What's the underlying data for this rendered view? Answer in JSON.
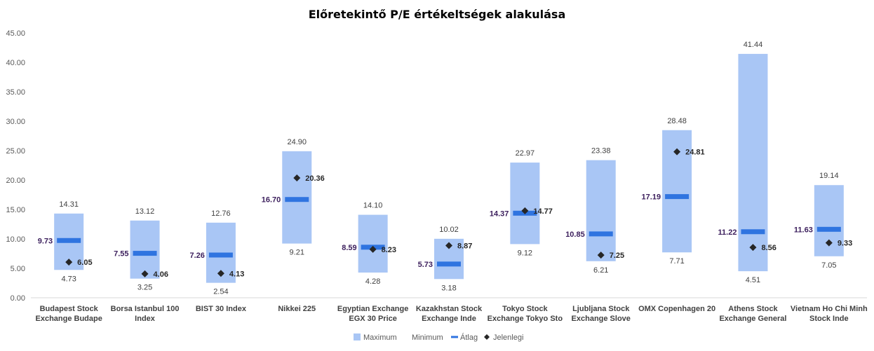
{
  "chart_data": {
    "type": "bar",
    "title": "Előretekintő P/E értékeltségek alakulása",
    "ylim": [
      0,
      45
    ],
    "y_ticks": [
      "0.00",
      "5.00",
      "10.00",
      "15.00",
      "20.00",
      "25.00",
      "30.00",
      "35.00",
      "40.00",
      "45.00"
    ],
    "grid": false,
    "legend_position": "bottom",
    "categories": [
      [
        "Budapest Stock",
        "Exchange Budape"
      ],
      [
        "Borsa Istanbul 100",
        "Index"
      ],
      [
        "BIST 30 Index"
      ],
      [
        "Nikkei 225"
      ],
      [
        "Egyptian Exchange",
        "EGX 30 Price"
      ],
      [
        "Kazakhstan Stock",
        "Exchange Inde"
      ],
      [
        "Tokyo Stock",
        "Exchange Tokyo Sto"
      ],
      [
        "Ljubljana Stock",
        "Exchange Slove"
      ],
      [
        "OMX Copenhagen 20"
      ],
      [
        "Athens Stock",
        "Exchange General"
      ],
      [
        "Vietnam Ho Chi Minh",
        "Stock Inde"
      ]
    ],
    "series": [
      {
        "name": "Maximum",
        "values": [
          14.31,
          13.12,
          12.76,
          24.9,
          14.1,
          10.02,
          22.97,
          23.38,
          28.48,
          41.44,
          19.14
        ]
      },
      {
        "name": "Minimum",
        "values": [
          4.73,
          3.25,
          2.54,
          9.21,
          4.28,
          3.18,
          9.12,
          6.21,
          7.71,
          4.51,
          7.05
        ]
      },
      {
        "name": "Átlag",
        "values": [
          9.73,
          7.55,
          7.26,
          16.7,
          8.59,
          5.73,
          14.37,
          10.85,
          17.19,
          11.22,
          11.63
        ]
      },
      {
        "name": "Jelenlegi",
        "values": [
          6.05,
          4.06,
          4.13,
          20.36,
          8.23,
          8.87,
          14.77,
          7.25,
          24.81,
          8.56,
          9.33
        ]
      }
    ],
    "colors": {
      "range": "#a9c6f5",
      "average": "#2f74e0",
      "current": "#262626"
    }
  }
}
